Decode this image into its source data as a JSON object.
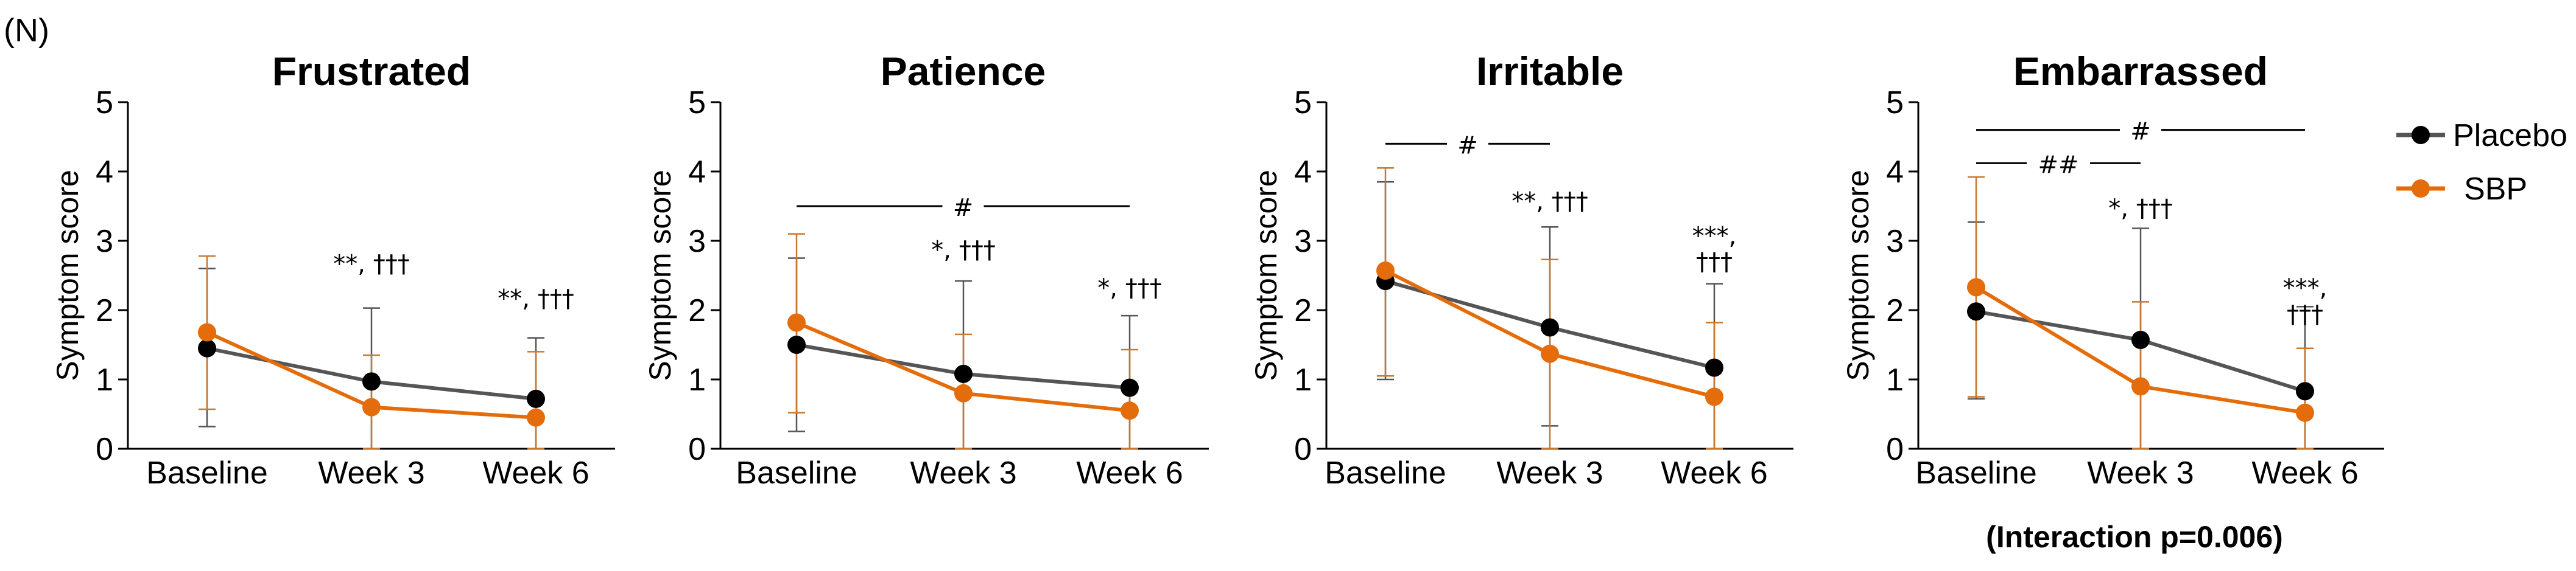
{
  "panel_label": "(N)",
  "chart_data": [
    {
      "type": "line",
      "title": "Frustrated",
      "ylabel": "Symptom score",
      "ylim": [
        0,
        5
      ],
      "yticks": [
        0,
        1,
        2,
        3,
        4,
        5
      ],
      "categories": [
        "Baseline",
        "Week 3",
        "Week 6"
      ],
      "series": [
        {
          "name": "Placebo",
          "values": [
            1.45,
            0.97,
            0.72
          ],
          "err_low": [
            0.32,
            0.0,
            0.0
          ],
          "err_high": [
            2.6,
            2.03,
            1.6
          ]
        },
        {
          "name": "SBP",
          "values": [
            1.68,
            0.6,
            0.45
          ],
          "err_low": [
            0.57,
            0.0,
            0.0
          ],
          "err_high": [
            2.78,
            1.35,
            1.4
          ]
        }
      ],
      "annotations": [
        {
          "text": "**, †††",
          "category": 1,
          "y": 2.55
        },
        {
          "text": "**, †††",
          "category": 2,
          "y": 2.05
        }
      ],
      "brackets": []
    },
    {
      "type": "line",
      "title": "Patience",
      "ylabel": "Symptom score",
      "ylim": [
        0,
        5
      ],
      "yticks": [
        0,
        1,
        2,
        3,
        4,
        5
      ],
      "categories": [
        "Baseline",
        "Week 3",
        "Week 6"
      ],
      "series": [
        {
          "name": "Placebo",
          "values": [
            1.5,
            1.08,
            0.88
          ],
          "err_low": [
            0.25,
            0.0,
            0.0
          ],
          "err_high": [
            2.75,
            2.42,
            1.92
          ]
        },
        {
          "name": "SBP",
          "values": [
            1.82,
            0.8,
            0.55
          ],
          "err_low": [
            0.52,
            0.0,
            0.0
          ],
          "err_high": [
            3.1,
            1.65,
            1.43
          ]
        }
      ],
      "annotations": [
        {
          "text": "*, †††",
          "category": 1,
          "y": 2.75
        },
        {
          "text": "*, †††",
          "category": 2,
          "y": 2.2
        }
      ],
      "brackets": [
        {
          "text": "#",
          "from": 0,
          "to": 2,
          "y": 3.5
        }
      ]
    },
    {
      "type": "line",
      "title": "Irritable",
      "ylabel": "Symptom score",
      "ylim": [
        0,
        5
      ],
      "yticks": [
        0,
        1,
        2,
        3,
        4,
        5
      ],
      "categories": [
        "Baseline",
        "Week 3",
        "Week 6"
      ],
      "series": [
        {
          "name": "Placebo",
          "values": [
            2.42,
            1.75,
            1.17
          ],
          "err_low": [
            1.0,
            0.33,
            0.0
          ],
          "err_high": [
            3.85,
            3.2,
            2.38
          ]
        },
        {
          "name": "SBP",
          "values": [
            2.57,
            1.37,
            0.75
          ],
          "err_low": [
            1.05,
            0.0,
            0.0
          ],
          "err_high": [
            4.05,
            2.73,
            1.82
          ]
        }
      ],
      "annotations": [
        {
          "text": "**, †††",
          "category": 1,
          "y": 3.45
        },
        {
          "text": "***,",
          "category": 2,
          "y": 2.95
        },
        {
          "text": "†††",
          "category": 2,
          "y": 2.58
        }
      ],
      "brackets": [
        {
          "text": "#",
          "from": 0,
          "to": 1,
          "y": 4.4
        }
      ]
    },
    {
      "type": "line",
      "title": "Embarrassed",
      "ylabel": "Symptom score",
      "ylim": [
        0,
        5
      ],
      "yticks": [
        0,
        1,
        2,
        3,
        4,
        5
      ],
      "categories": [
        "Baseline",
        "Week 3",
        "Week 6"
      ],
      "series": [
        {
          "name": "Placebo",
          "values": [
            1.98,
            1.57,
            0.83
          ],
          "err_low": [
            0.72,
            0.0,
            0.0
          ],
          "err_high": [
            3.27,
            3.18,
            2.05
          ]
        },
        {
          "name": "SBP",
          "values": [
            2.33,
            0.9,
            0.52
          ],
          "err_low": [
            0.75,
            0.0,
            0.0
          ],
          "err_high": [
            3.92,
            2.12,
            1.45
          ]
        }
      ],
      "annotations": [
        {
          "text": "*, †††",
          "category": 1,
          "y": 3.35
        },
        {
          "text": "***,",
          "category": 2,
          "y": 2.2
        },
        {
          "text": "†††",
          "category": 2,
          "y": 1.82
        }
      ],
      "brackets": [
        {
          "text": "#",
          "from": 0,
          "to": 2,
          "y": 4.6
        },
        {
          "text": "##",
          "from": 0,
          "to": 1,
          "y": 4.12
        }
      ]
    }
  ],
  "legend": [
    {
      "name": "Placebo",
      "color": "#555555",
      "marker": "#000000"
    },
    {
      "name": "SBP",
      "color": "#E46C0A",
      "marker": "#E46C0A"
    }
  ],
  "footnote": "(Interaction p=0.006)"
}
